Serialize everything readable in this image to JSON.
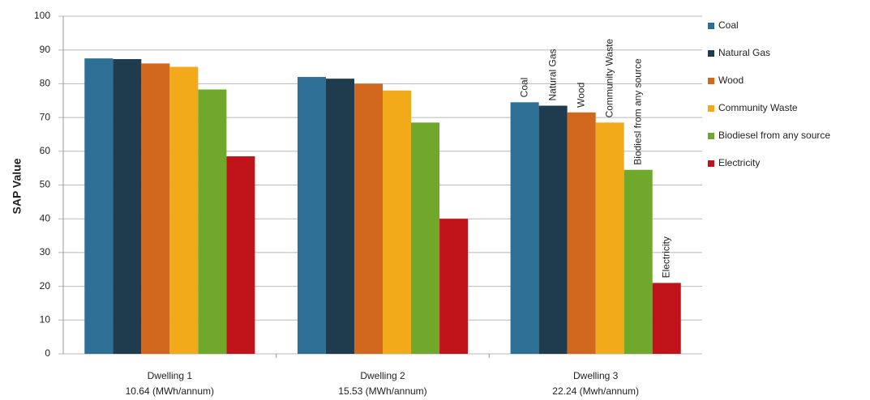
{
  "chart_data": {
    "type": "bar",
    "y_label": "SAP Value",
    "categories": [
      "Dwelling 1",
      "Dwelling 2",
      "Dwelling 3"
    ],
    "category_sublabels": [
      "10.64 (MWh/annum)",
      "15.53 (MWh/annum)",
      "22.24 (Mwh/annum)"
    ],
    "series": [
      {
        "name": "Coal",
        "color": "#2e6f96",
        "values": [
          87.5,
          82,
          74.5
        ]
      },
      {
        "name": "Natural Gas",
        "color": "#1f3b4e",
        "values": [
          87.3,
          81.5,
          73.5
        ]
      },
      {
        "name": "Wood",
        "color": "#d2671e",
        "values": [
          86,
          80,
          71.5
        ]
      },
      {
        "name": "Community Waste",
        "color": "#f2aa1b",
        "values": [
          85,
          78,
          68.5
        ]
      },
      {
        "name": "Biodiesel from any source",
        "color": "#6fa82a",
        "values": [
          78.3,
          68.5,
          54.5
        ]
      },
      {
        "name": "Electricity",
        "color": "#c0141a",
        "values": [
          58.5,
          40,
          21
        ]
      }
    ],
    "annotations": [
      "Coal",
      "Natural Gas",
      "Wood",
      "Community Waste",
      "Biodiesl from any source",
      "Electricity"
    ],
    "ylim": [
      0,
      100
    ],
    "yticks": [
      0,
      10,
      20,
      30,
      40,
      50,
      60,
      70,
      80,
      90,
      100
    ],
    "grid": true,
    "legend": "right"
  }
}
